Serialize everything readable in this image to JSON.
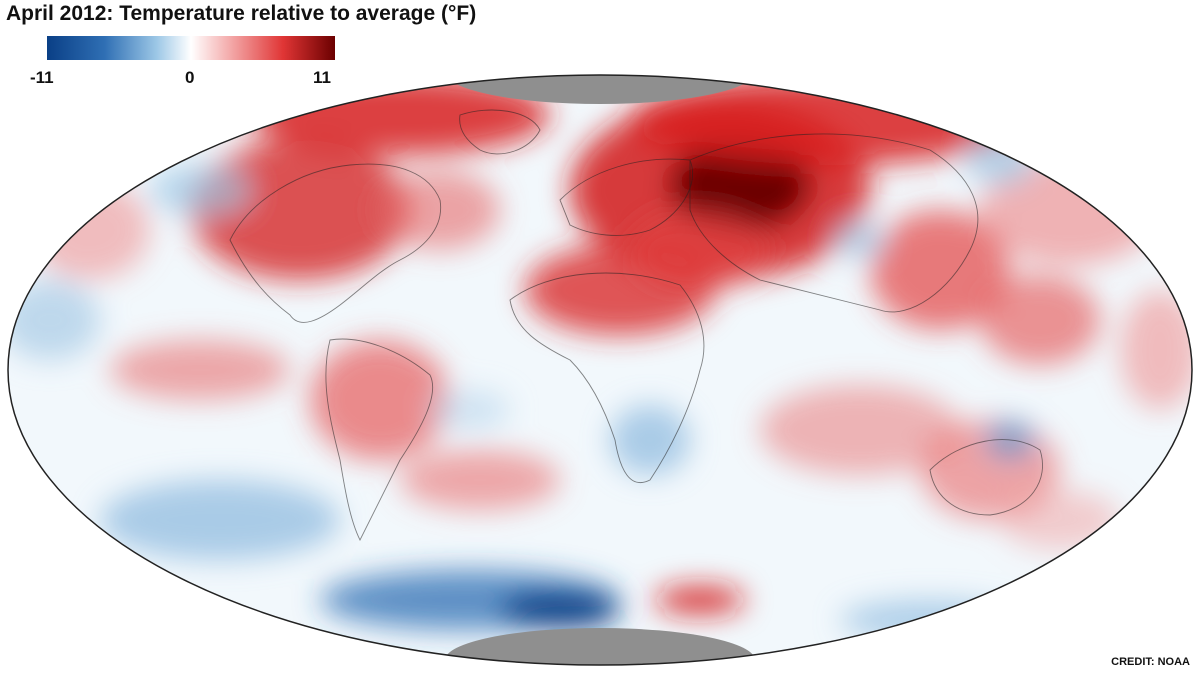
{
  "title": "April 2012: Temperature relative to average (°F)",
  "legend": {
    "min_label": "-11",
    "mid_label": "0",
    "max_label": "11",
    "colors": [
      "#0a3f86",
      "#2f6fb4",
      "#9cc7e6",
      "#ffffff",
      "#f5b4b4",
      "#e03535",
      "#6b0000"
    ]
  },
  "credit": "CREDIT: NOAA",
  "colors": {
    "ocean_neutral": "#f2f8fc",
    "pole_cap": "#8f8f8f",
    "outline": "#222222"
  }
}
